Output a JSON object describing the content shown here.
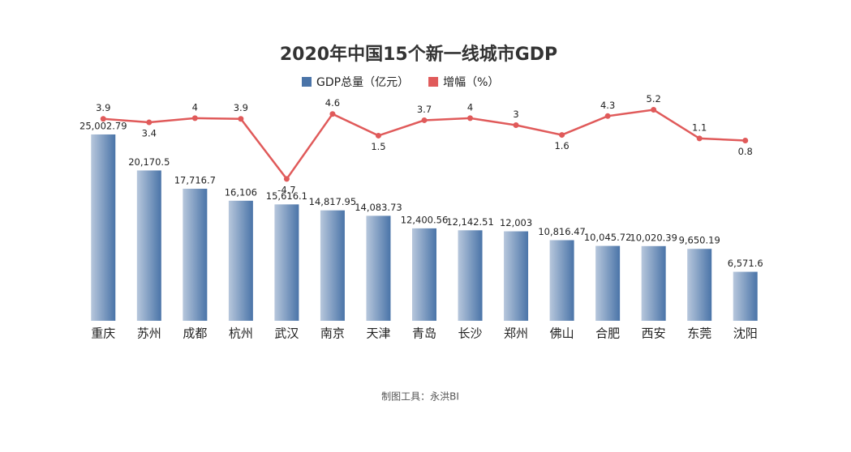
{
  "chart_data": {
    "type": "bar",
    "title": "2020年中国15个新一线城市GDP",
    "footnote": "制图工具：永洪BI",
    "categories": [
      "重庆",
      "苏州",
      "成都",
      "杭州",
      "武汉",
      "南京",
      "天津",
      "青岛",
      "长沙",
      "郑州",
      "佛山",
      "合肥",
      "西安",
      "东莞",
      "沈阳"
    ],
    "ylim": [
      0,
      30000
    ],
    "y2lim": [
      -25,
      7
    ],
    "series": [
      {
        "name": "GDP总量（亿元）",
        "color": "#4a74a8",
        "values": [
          25002.79,
          20170.5,
          17716.7,
          16106,
          15616.1,
          14817.95,
          14083.73,
          12400.56,
          12142.51,
          12003,
          10816.47,
          10045.72,
          10020.39,
          9650.19,
          6571.6
        ],
        "value_labels": [
          "25,002.79",
          "20,170.5",
          "17,716.7",
          "16,106",
          "15,616.1",
          "14,817.95",
          "14,083.73",
          "12,400.56",
          "12,142.51",
          "12,003",
          "10,816.47",
          "10,045.72",
          "10,020.39",
          "9,650.19",
          "6,571.6"
        ]
      },
      {
        "name": "增幅（%）",
        "color": "#e05a5a",
        "type": "line",
        "axis": "y2",
        "values": [
          3.9,
          3.4,
          4,
          3.9,
          -4.7,
          4.6,
          1.5,
          3.7,
          4,
          3,
          1.6,
          4.3,
          5.2,
          1.1,
          0.8
        ]
      }
    ]
  }
}
